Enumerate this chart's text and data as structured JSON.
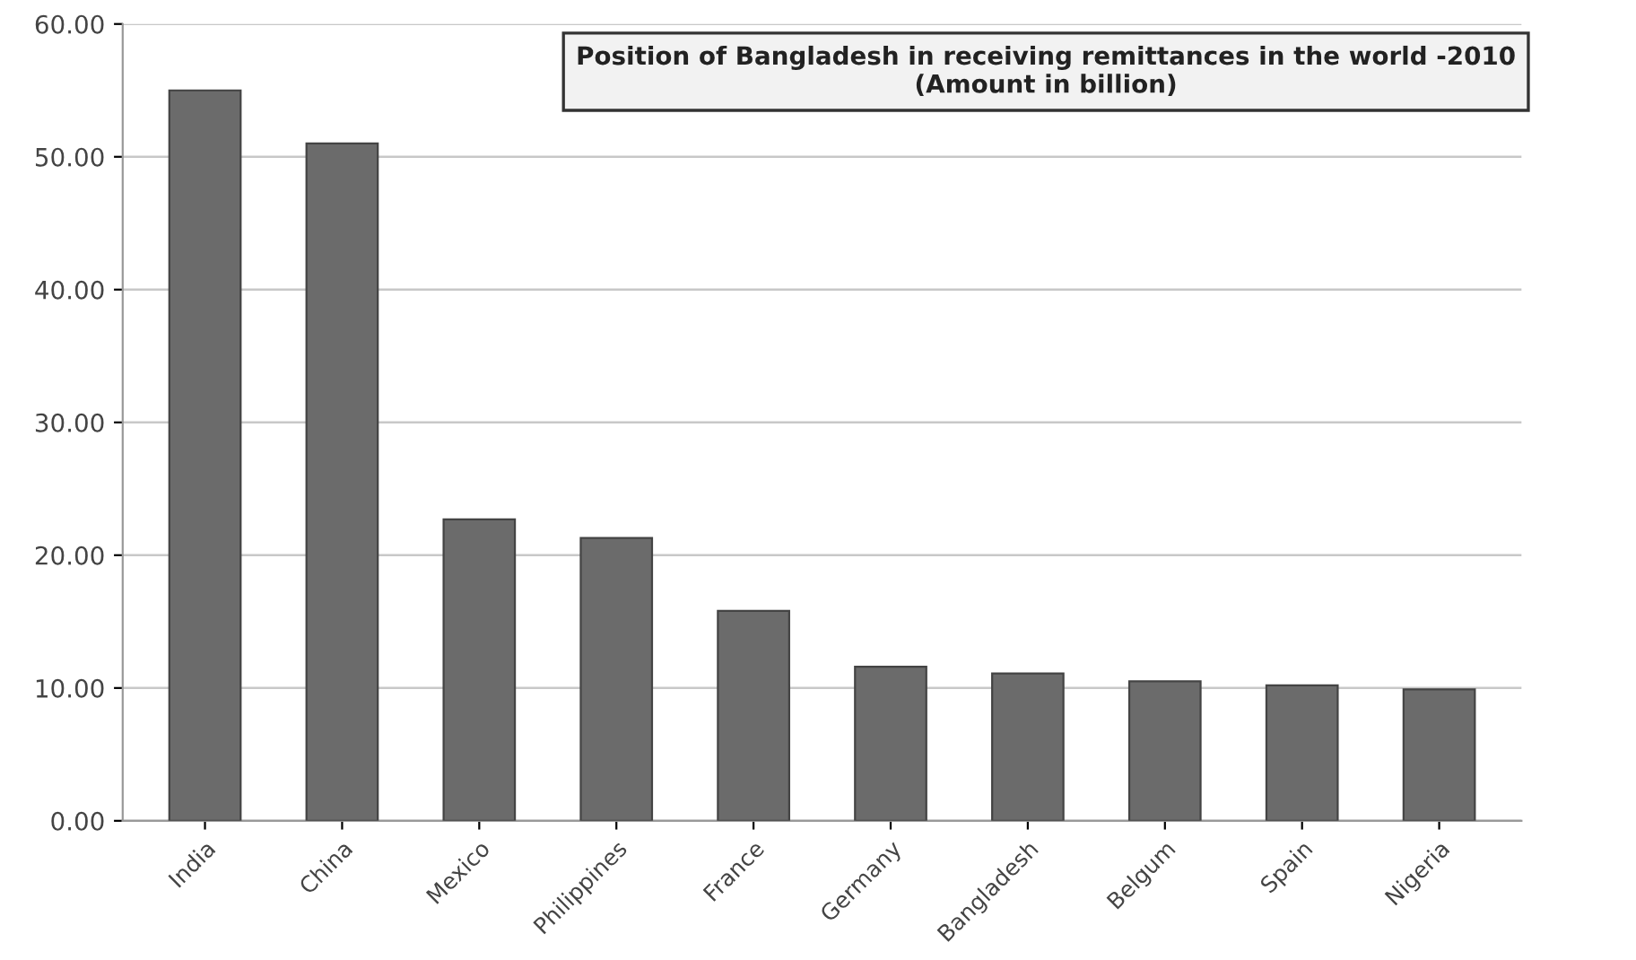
{
  "chart_data": {
    "type": "bar",
    "title": "Position of Bangladesh in receiving remittances in the world -2010\n(Amount in billion)",
    "categories": [
      "India",
      "China",
      "Mexico",
      "Philippines",
      "France",
      "Germany",
      "Bangladesh",
      "Belgum",
      "Spain",
      "Nigeria"
    ],
    "values": [
      55.0,
      51.0,
      22.7,
      21.3,
      15.8,
      11.6,
      11.1,
      10.5,
      10.2,
      9.9
    ],
    "color": "#6b6b6b",
    "ylim": [
      0,
      60
    ],
    "yticks": [
      {
        "value": 0,
        "label": "0.00"
      },
      {
        "value": 10,
        "label": "10.00"
      },
      {
        "value": 20,
        "label": "20.00"
      },
      {
        "value": 30,
        "label": "30.00"
      },
      {
        "value": 40,
        "label": "40.00"
      },
      {
        "value": 50,
        "label": "50.00"
      },
      {
        "value": 60,
        "label": "60.00"
      }
    ],
    "grid": "y"
  }
}
